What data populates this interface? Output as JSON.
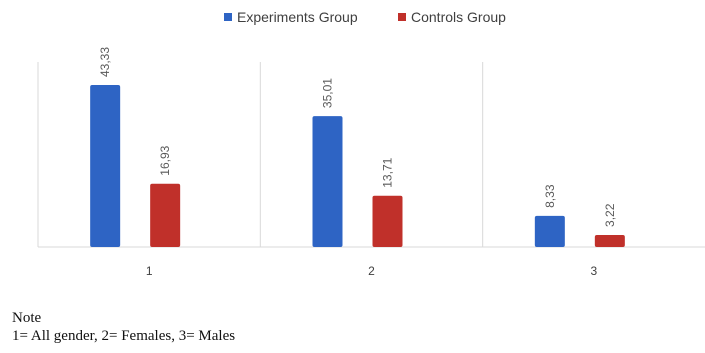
{
  "chart_data": {
    "type": "bar",
    "categories": [
      "1",
      "2",
      "3"
    ],
    "series": [
      {
        "name": "Experiments Group",
        "values": [
          43.33,
          35.01,
          8.33
        ],
        "labels": [
          "43,33",
          "35,01",
          "8,33"
        ],
        "color": "#2e64c4"
      },
      {
        "name": "Controls Group",
        "values": [
          16.93,
          13.71,
          3.22
        ],
        "labels": [
          "16,93",
          "13,71",
          "3,22"
        ],
        "color": "#c0302a"
      }
    ],
    "ylim": [
      0,
      50
    ],
    "legend_position": "top-center",
    "grid": false,
    "category_separators": true
  },
  "note": {
    "title": "Note",
    "text": "1= All gender,   2= Females,   3= Males"
  }
}
